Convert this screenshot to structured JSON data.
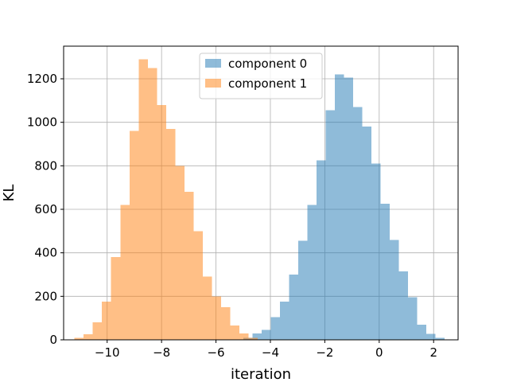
{
  "chart_data": {
    "type": "histogram",
    "xlabel": "iteration",
    "ylabel": "KL",
    "xlim": [
      -11.6,
      2.9
    ],
    "ylim": [
      0,
      1350
    ],
    "grid": true,
    "legend_placement": "upper-center",
    "x_ticks": [
      -10,
      -8,
      -6,
      -4,
      -2,
      0,
      2
    ],
    "x_tick_labels": [
      "−10",
      "−8",
      "−6",
      "−4",
      "−2",
      "0",
      "2"
    ],
    "y_ticks": [
      0,
      200,
      400,
      600,
      800,
      1000,
      1200
    ],
    "y_tick_labels": [
      "0",
      "200",
      "400",
      "600",
      "800",
      "1000",
      "1200"
    ],
    "series": [
      {
        "name": "component 0",
        "color": "#1f77b4",
        "alpha": 0.5,
        "bin_start": -5.0,
        "bin_width": 0.3366,
        "values": [
          10,
          30,
          45,
          105,
          175,
          300,
          455,
          620,
          825,
          1055,
          1220,
          1205,
          1070,
          980,
          810,
          625,
          460,
          315,
          195,
          70,
          28,
          10
        ]
      },
      {
        "name": "component 1",
        "color": "#ff7f0e",
        "alpha": 0.5,
        "bin_start": -11.2,
        "bin_width": 0.3366,
        "values": [
          10,
          25,
          80,
          175,
          380,
          620,
          960,
          1290,
          1250,
          1080,
          970,
          800,
          680,
          500,
          290,
          200,
          150,
          65,
          30,
          10
        ]
      }
    ]
  }
}
